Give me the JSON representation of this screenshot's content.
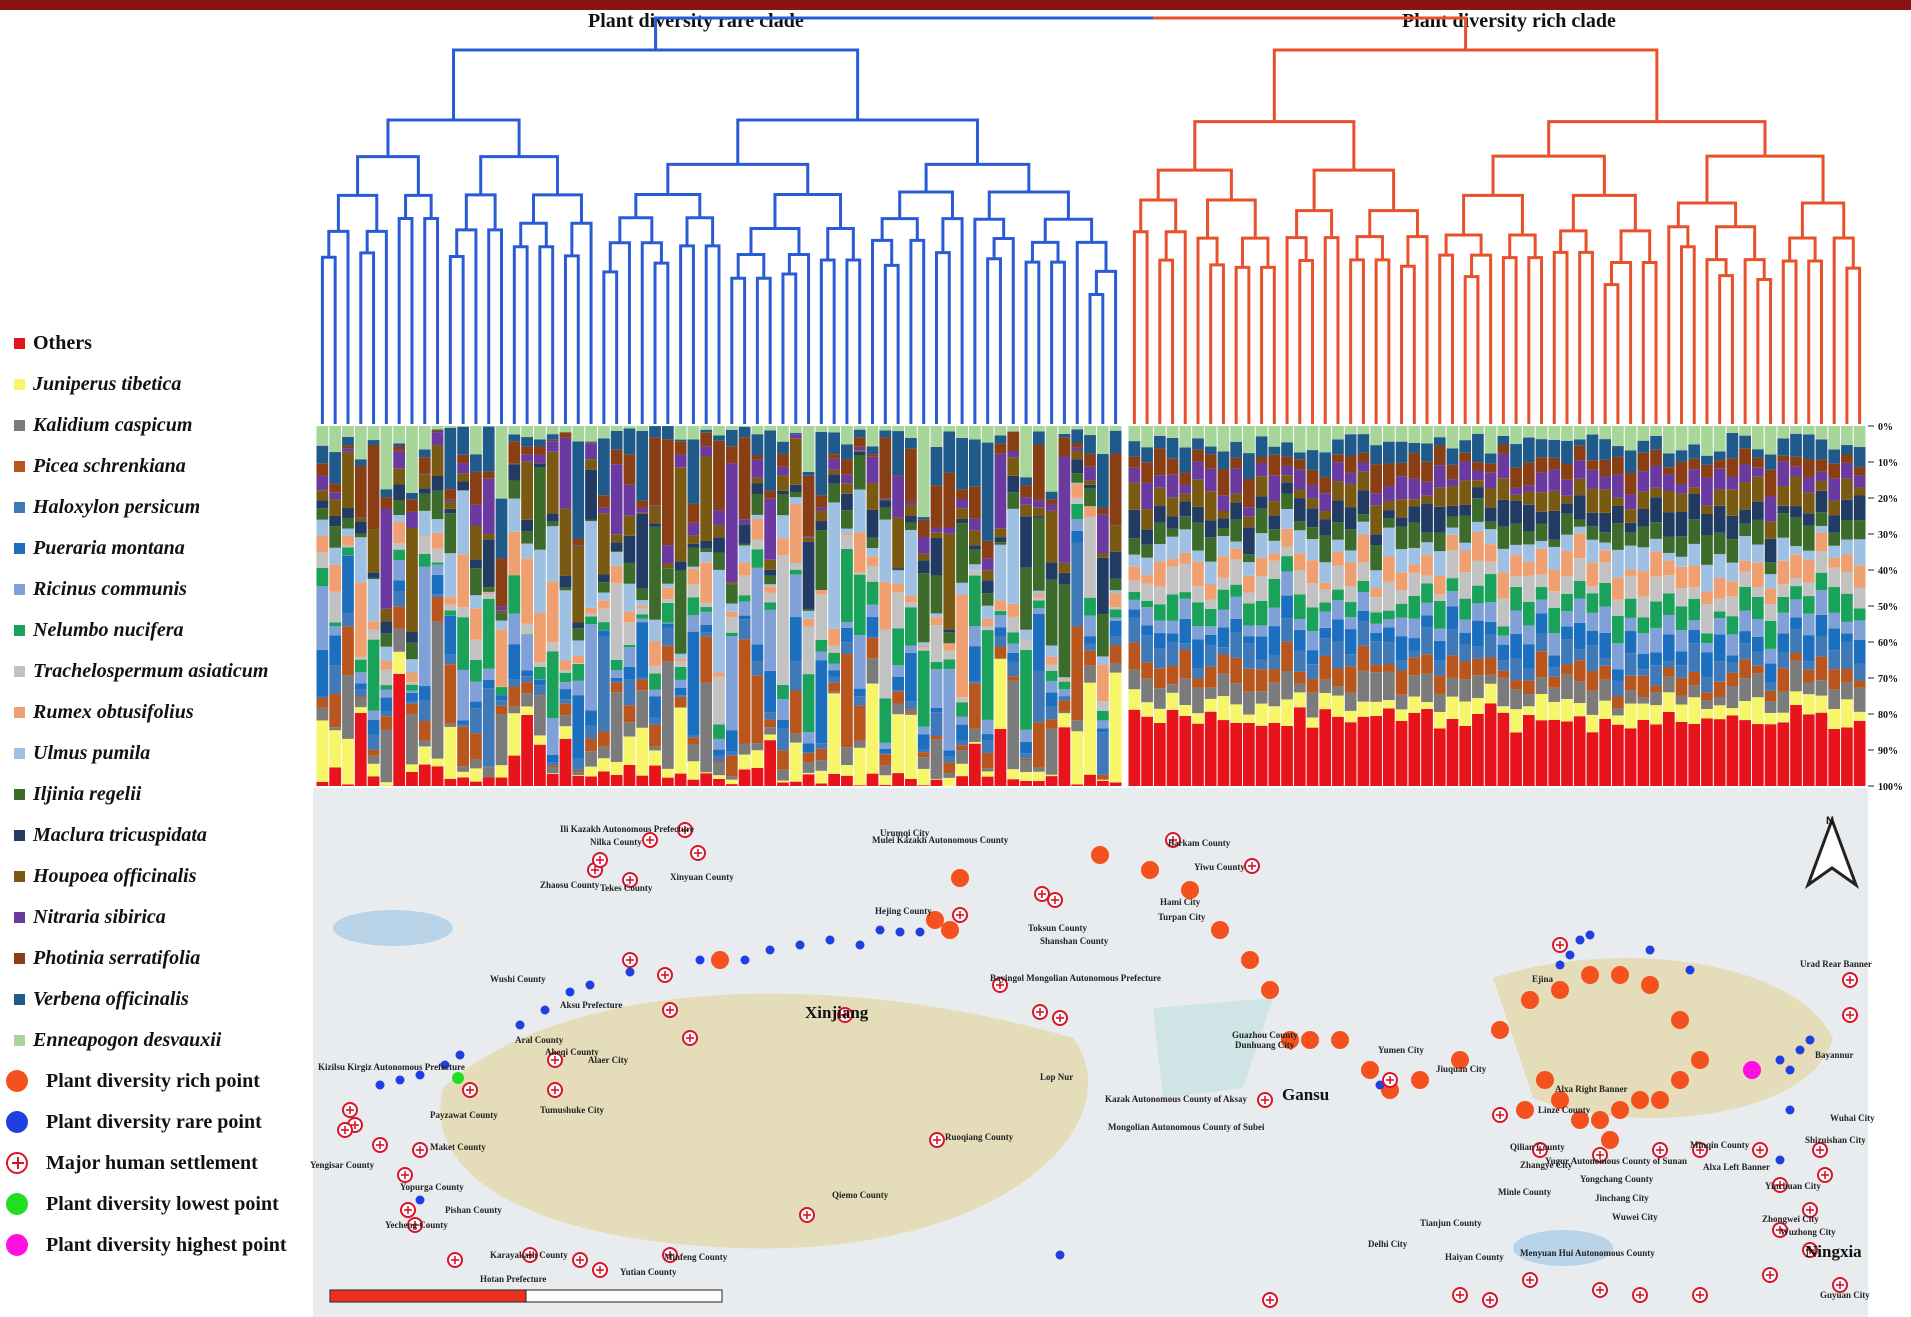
{
  "dendrogram": {
    "left_title": "Plant diversity rare clade",
    "right_title": "Plant diversity rich clade",
    "left_color": "#2a5bd7",
    "right_color": "#e8512a",
    "left_leaves": 63,
    "right_leaves": 58
  },
  "legend": {
    "species": [
      {
        "label": "Others",
        "color": "#e8141c",
        "italic": false
      },
      {
        "label": "Juniperus tibetica",
        "color": "#f7f56a",
        "italic": true
      },
      {
        "label": "Kalidium caspicum",
        "color": "#7b7b7b",
        "italic": true
      },
      {
        "label": "Picea schrenkiana",
        "color": "#b9561e",
        "italic": true
      },
      {
        "label": "Haloxylon persicum",
        "color": "#3f79b8",
        "italic": true
      },
      {
        "label": "Pueraria montana",
        "color": "#1c6fbf",
        "italic": true
      },
      {
        "label": "Ricinus communis",
        "color": "#7fa1d8",
        "italic": true
      },
      {
        "label": "Nelumbo nucifera",
        "color": "#1aa15a",
        "italic": true
      },
      {
        "label": "Trachelospermum asiaticum",
        "color": "#c2c2c2",
        "italic": true
      },
      {
        "label": "Rumex obtusifolius",
        "color": "#f0a070",
        "italic": true
      },
      {
        "label": "Ulmus pumila",
        "color": "#9ec1e3",
        "italic": true
      },
      {
        "label": "Iljinia regelii",
        "color": "#3d6b2b",
        "italic": true
      },
      {
        "label": "Maclura tricuspidata",
        "color": "#213b63",
        "italic": true
      },
      {
        "label": "Houpoea officinalis",
        "color": "#7a5a12",
        "italic": true
      },
      {
        "label": "Nitraria sibirica",
        "color": "#6a3aa0",
        "italic": true
      },
      {
        "label": "Photinia serratifolia",
        "color": "#8a3e14",
        "italic": true
      },
      {
        "label": "Verbena officinalis",
        "color": "#1f5a8a",
        "italic": true
      },
      {
        "label": "Enneapogon desvauxii",
        "color": "#a8d69a",
        "italic": true
      }
    ],
    "markers": [
      {
        "label": "Plant diversity rich point",
        "type": "rich",
        "color": "#f4511e"
      },
      {
        "label": "Plant diversity rare point",
        "type": "rare",
        "color": "#1f3fe0"
      },
      {
        "label": "Major human settlement",
        "type": "settlement",
        "color": "#d8142a"
      },
      {
        "label": "Plant diversity lowest point",
        "type": "lowest",
        "color": "#22dd22"
      },
      {
        "label": "Plant diversity highest point",
        "type": "highest",
        "color": "#ff10e0"
      }
    ]
  },
  "percent_axis": [
    "0%",
    "10%",
    "20%",
    "30%",
    "40%",
    "50%",
    "60%",
    "70%",
    "80%",
    "90%",
    "100%"
  ],
  "map": {
    "region_labels": [
      {
        "text": "Xinjiang",
        "size": "big"
      },
      {
        "text": "Gansu",
        "size": "big"
      },
      {
        "text": "Ningxia",
        "size": "big"
      }
    ],
    "place_labels": [
      "Ili Kazakh Autonomous Prefecture",
      "Nilka County",
      "Xinyuan County",
      "Zhaosu County",
      "Tekes County",
      "Urumqi City",
      "Mulei Kazakh Autonomous County",
      "Barkam County",
      "Yiwu County",
      "Hami City",
      "Turpan City",
      "Toksun County",
      "Shanshan County",
      "Hejing County",
      "Bayingol Mongolian Autonomous Prefecture",
      "Wushi County",
      "Aksu Prefecture",
      "Aral County",
      "Aheqi County",
      "Alaer City",
      "Kizilsu Kirgiz Autonomous Prefecture",
      "Payzawat County",
      "Yengisar County",
      "Maket County",
      "Tumushuke City",
      "Yopurga County",
      "Pishan County",
      "Yecheng County",
      "Karayakash County",
      "Hotan Prefecture",
      "Yutian County",
      "Minfeng County",
      "Ruoqiang County",
      "Qiemo County",
      "Lop Nur",
      "Guazhou County",
      "Dunhuang City",
      "Yumen City",
      "Jiuquan City",
      "Kazak Autonomous County of Aksay",
      "Mongolian Autonomous County of Subei",
      "Ejina",
      "Alxa Right Banner",
      "Linze County",
      "Zhangye City",
      "Yugur Autonomous County of Sunan",
      "Qilian County",
      "Minle County",
      "Yongchang County",
      "Jinchang City",
      "Minqin County",
      "Wuwei City",
      "Alxa Left Banner",
      "Yinchuan City",
      "Shizuishan City",
      "Wuhai City",
      "Urad Rear Banner",
      "Bayannur",
      "Zhongwei City",
      "Wuzhong City",
      "Tianjun County",
      "Delhi City",
      "Haiyan County",
      "Menyuan Hui Autonomous County",
      "Guyuan City"
    ],
    "north_label": "N"
  }
}
